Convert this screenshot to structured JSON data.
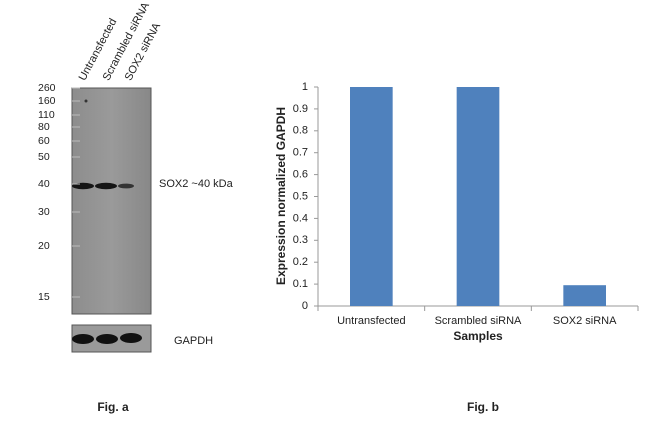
{
  "blot": {
    "lanes": [
      "Untransfected",
      "Scrambled siRNA",
      "SOX2 siRNA"
    ],
    "markers": [
      "260",
      "160",
      "110",
      "80",
      "60",
      "50",
      "40",
      "30",
      "20",
      "15"
    ],
    "band_label": "SOX2 ~40 kDa",
    "loading_label": "GAPDH",
    "caption": "Fig. a"
  },
  "chart_data": {
    "type": "bar",
    "caption": "Fig. b",
    "categories": [
      "Untransfected",
      "Scrambled siRNA",
      "SOX2 siRNA"
    ],
    "values": [
      1,
      1,
      0.095
    ],
    "color": "#4f81bd",
    "xlabel": "Samples",
    "ylabel": "Expression normalized GAPDH",
    "ylim": [
      0,
      1
    ],
    "yticks": [
      0,
      0.1,
      0.2,
      0.3,
      0.4,
      0.5,
      0.6,
      0.7,
      0.8,
      0.9,
      1
    ],
    "grid": false
  }
}
